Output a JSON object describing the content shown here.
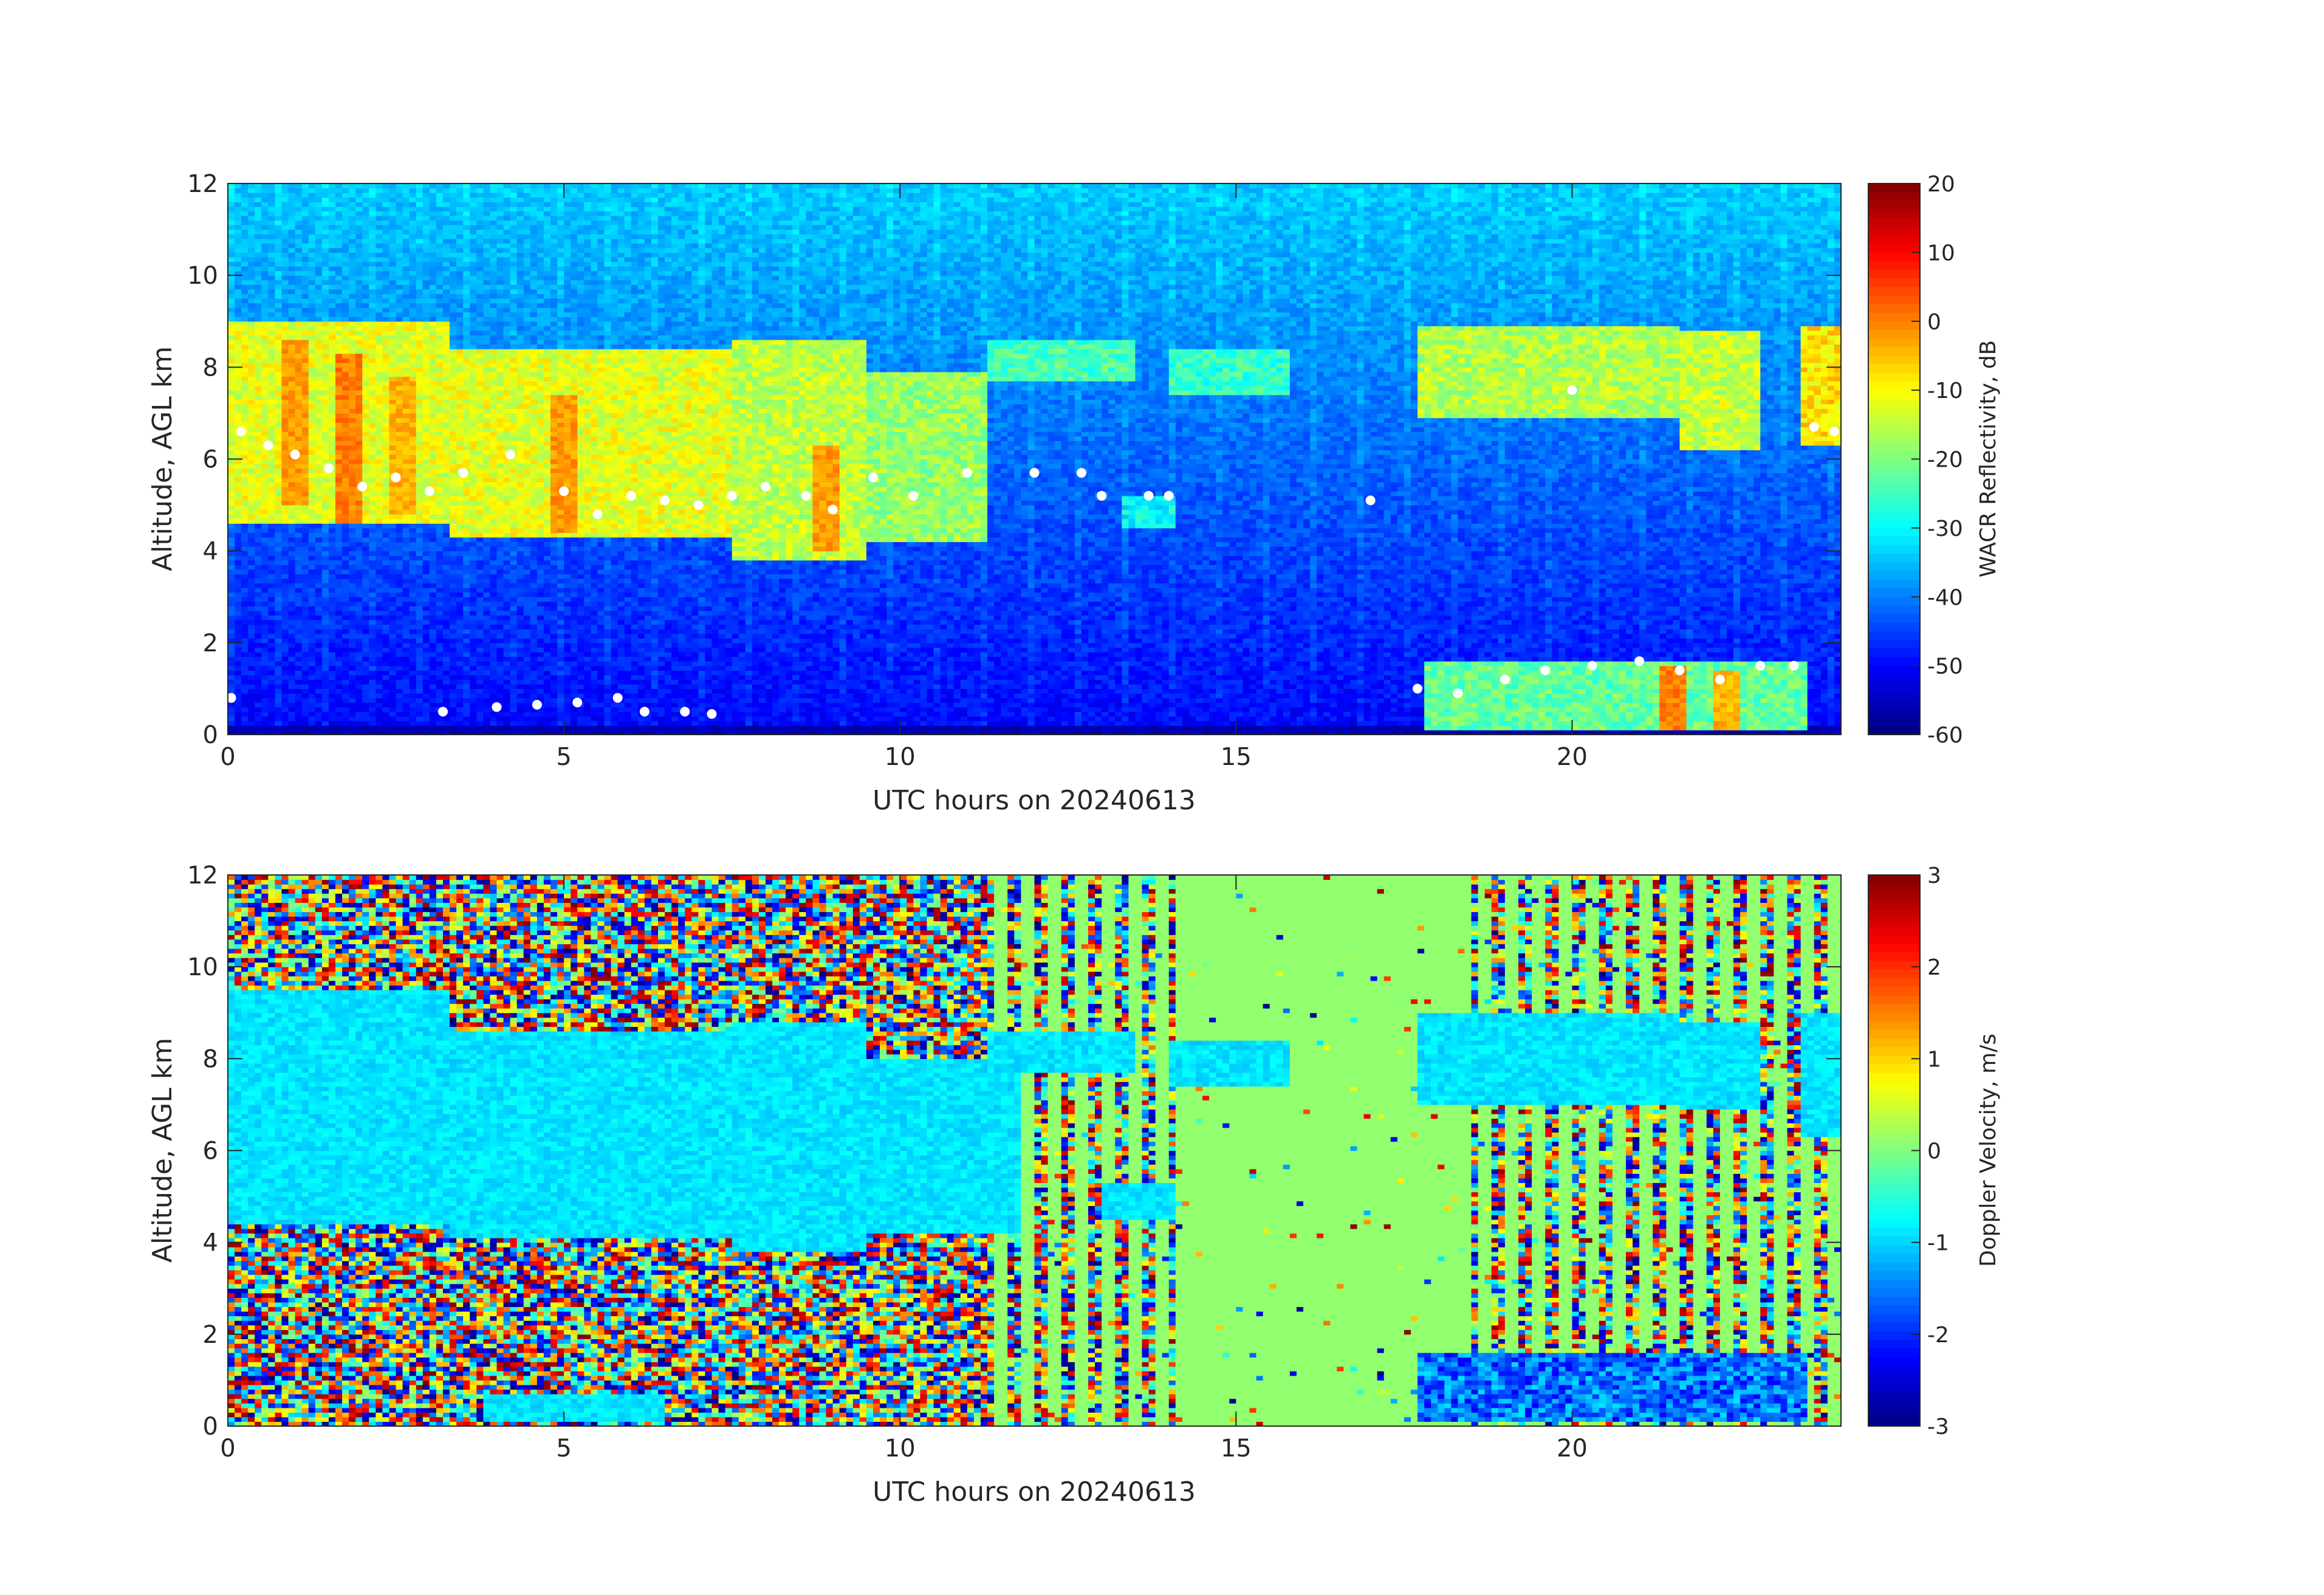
{
  "chart_data": [
    {
      "type": "heatmap",
      "title": "",
      "xlabel": "UTC hours on 20240613",
      "ylabel": "Altitude, AGL km",
      "xlim": [
        0,
        24
      ],
      "ylim": [
        0,
        12
      ],
      "xticks": [
        "0",
        "5",
        "10",
        "15",
        "20"
      ],
      "yticks": [
        "0",
        "2",
        "4",
        "6",
        "8",
        "10",
        "12"
      ],
      "colorbar": {
        "label": "WACR Reflectivity, dB",
        "range": [
          -60,
          20
        ],
        "ticks": [
          "20",
          "10",
          "0",
          "-10",
          "-20",
          "-30",
          "-40",
          "-50",
          "-60"
        ],
        "colormap": "jet"
      },
      "background_value_db": -38,
      "surface_clutter_value_db": -58,
      "cloud_layers": [
        {
          "t_start": 0.0,
          "t_end": 3.3,
          "base_km": 4.6,
          "top_km": 9.0,
          "value_db": -12
        },
        {
          "t_start": 3.3,
          "t_end": 7.5,
          "base_km": 4.3,
          "top_km": 8.4,
          "value_db": -12
        },
        {
          "t_start": 7.5,
          "t_end": 9.5,
          "base_km": 3.8,
          "top_km": 8.6,
          "value_db": -15
        },
        {
          "t_start": 9.5,
          "t_end": 11.3,
          "base_km": 4.2,
          "top_km": 7.9,
          "value_db": -18
        },
        {
          "t_start": 11.3,
          "t_end": 13.5,
          "base_km": 7.7,
          "top_km": 8.6,
          "value_db": -24
        },
        {
          "t_start": 13.3,
          "t_end": 14.1,
          "base_km": 4.5,
          "top_km": 5.2,
          "value_db": -30
        },
        {
          "t_start": 14.0,
          "t_end": 15.8,
          "base_km": 7.4,
          "top_km": 8.4,
          "value_db": -26
        },
        {
          "t_start": 17.7,
          "t_end": 21.6,
          "base_km": 6.9,
          "top_km": 8.9,
          "value_db": -16
        },
        {
          "t_start": 21.6,
          "t_end": 22.8,
          "base_km": 6.2,
          "top_km": 8.8,
          "value_db": -14
        },
        {
          "t_start": 23.4,
          "t_end": 24.0,
          "base_km": 6.3,
          "top_km": 8.9,
          "value_db": -8
        },
        {
          "t_start": 17.8,
          "t_end": 23.5,
          "base_km": 0.1,
          "top_km": 1.6,
          "value_db": -22
        }
      ],
      "fallstreaks": [
        {
          "t": 1.0,
          "top_km": 8.6,
          "base_km": 5.0,
          "value_db": -2
        },
        {
          "t": 1.8,
          "top_km": 8.3,
          "base_km": 4.5,
          "value_db": 0
        },
        {
          "t": 2.6,
          "top_km": 7.8,
          "base_km": 4.8,
          "value_db": -4
        },
        {
          "t": 5.0,
          "top_km": 7.4,
          "base_km": 4.4,
          "value_db": -2
        },
        {
          "t": 8.9,
          "top_km": 6.3,
          "base_km": 4.0,
          "value_db": -2
        },
        {
          "t": 21.5,
          "top_km": 1.5,
          "base_km": 0.1,
          "value_db": 0
        },
        {
          "t": 22.3,
          "top_km": 1.4,
          "base_km": 0.1,
          "value_db": -4
        }
      ],
      "cloud_base_markers": [
        {
          "t": 0.2,
          "alt_km": 6.6
        },
        {
          "t": 0.6,
          "alt_km": 6.3
        },
        {
          "t": 1.0,
          "alt_km": 6.1
        },
        {
          "t": 1.5,
          "alt_km": 5.8
        },
        {
          "t": 2.0,
          "alt_km": 5.4
        },
        {
          "t": 2.5,
          "alt_km": 5.6
        },
        {
          "t": 3.0,
          "alt_km": 5.3
        },
        {
          "t": 3.5,
          "alt_km": 5.7
        },
        {
          "t": 4.2,
          "alt_km": 6.1
        },
        {
          "t": 5.0,
          "alt_km": 5.3
        },
        {
          "t": 5.5,
          "alt_km": 4.8
        },
        {
          "t": 6.0,
          "alt_km": 5.2
        },
        {
          "t": 6.5,
          "alt_km": 5.1
        },
        {
          "t": 7.0,
          "alt_km": 5.0
        },
        {
          "t": 7.5,
          "alt_km": 5.2
        },
        {
          "t": 8.0,
          "alt_km": 5.4
        },
        {
          "t": 8.6,
          "alt_km": 5.2
        },
        {
          "t": 9.0,
          "alt_km": 4.9
        },
        {
          "t": 9.6,
          "alt_km": 5.6
        },
        {
          "t": 10.2,
          "alt_km": 5.2
        },
        {
          "t": 11.0,
          "alt_km": 5.7
        },
        {
          "t": 12.0,
          "alt_km": 5.7
        },
        {
          "t": 12.7,
          "alt_km": 5.7
        },
        {
          "t": 13.0,
          "alt_km": 5.2
        },
        {
          "t": 13.7,
          "alt_km": 5.2
        },
        {
          "t": 14.0,
          "alt_km": 5.2
        },
        {
          "t": 17.0,
          "alt_km": 5.1
        },
        {
          "t": 20.0,
          "alt_km": 7.5
        },
        {
          "t": 23.6,
          "alt_km": 6.7
        },
        {
          "t": 23.9,
          "alt_km": 6.6
        },
        {
          "t": 0.05,
          "alt_km": 0.8
        },
        {
          "t": 3.2,
          "alt_km": 0.5
        },
        {
          "t": 4.0,
          "alt_km": 0.6
        },
        {
          "t": 4.6,
          "alt_km": 0.65
        },
        {
          "t": 5.2,
          "alt_km": 0.7
        },
        {
          "t": 5.8,
          "alt_km": 0.8
        },
        {
          "t": 6.2,
          "alt_km": 0.5
        },
        {
          "t": 6.8,
          "alt_km": 0.5
        },
        {
          "t": 7.2,
          "alt_km": 0.45
        },
        {
          "t": 17.7,
          "alt_km": 1.0
        },
        {
          "t": 18.3,
          "alt_km": 0.9
        },
        {
          "t": 19.0,
          "alt_km": 1.2
        },
        {
          "t": 19.6,
          "alt_km": 1.4
        },
        {
          "t": 20.3,
          "alt_km": 1.5
        },
        {
          "t": 21.0,
          "alt_km": 1.6
        },
        {
          "t": 21.6,
          "alt_km": 1.4
        },
        {
          "t": 22.2,
          "alt_km": 1.2
        },
        {
          "t": 22.8,
          "alt_km": 1.5
        },
        {
          "t": 23.3,
          "alt_km": 1.5
        }
      ]
    },
    {
      "type": "heatmap",
      "title": "",
      "xlabel": "UTC hours on 20240613",
      "ylabel": "Altitude, AGL km",
      "xlim": [
        0,
        24
      ],
      "ylim": [
        0,
        12
      ],
      "xticks": [
        "0",
        "5",
        "10",
        "15",
        "20"
      ],
      "yticks": [
        "0",
        "2",
        "4",
        "6",
        "8",
        "10",
        "12"
      ],
      "colorbar": {
        "label": "Doppler Velocity, m/s",
        "range": [
          -3,
          3
        ],
        "ticks": [
          "3",
          "2",
          "1",
          "0",
          "-1",
          "-2",
          "-3"
        ],
        "colormap": "jet"
      },
      "noise_regions": [
        {
          "t_start": 0.0,
          "t_end": 11.3
        },
        {
          "t_start": 11.3,
          "t_end": 14.1,
          "striped": true
        },
        {
          "t_start": 18.5,
          "t_end": 24.0,
          "striped": true
        }
      ],
      "clear_value_ms": 0.1,
      "cloud_value_ms": -0.9,
      "cloud_layers": [
        {
          "t_start": 0.0,
          "t_end": 3.3,
          "base_km": 4.4,
          "top_km": 9.5
        },
        {
          "t_start": 3.3,
          "t_end": 7.5,
          "base_km": 4.1,
          "top_km": 8.6
        },
        {
          "t_start": 7.5,
          "t_end": 9.5,
          "base_km": 3.8,
          "top_km": 8.8
        },
        {
          "t_start": 9.5,
          "t_end": 11.8,
          "base_km": 4.2,
          "top_km": 8.0
        },
        {
          "t_start": 11.3,
          "t_end": 13.5,
          "base_km": 7.7,
          "top_km": 8.6
        },
        {
          "t_start": 13.0,
          "t_end": 14.1,
          "base_km": 4.5,
          "top_km": 5.3
        },
        {
          "t_start": 14.0,
          "t_end": 15.8,
          "base_km": 7.4,
          "top_km": 8.4
        },
        {
          "t_start": 17.7,
          "t_end": 21.6,
          "base_km": 7.0,
          "top_km": 9.0
        },
        {
          "t_start": 21.6,
          "t_end": 22.8,
          "base_km": 6.9,
          "top_km": 8.8
        },
        {
          "t_start": 23.4,
          "t_end": 24.0,
          "base_km": 6.3,
          "top_km": 9.0
        },
        {
          "t_start": 3.8,
          "t_end": 6.5,
          "base_km": 0.1,
          "top_km": 0.7
        }
      ],
      "low_cloud": {
        "t_start": 17.7,
        "t_end": 23.5,
        "base_km": 0.1,
        "top_km": 1.6,
        "value_ms": -1.6
      }
    }
  ]
}
